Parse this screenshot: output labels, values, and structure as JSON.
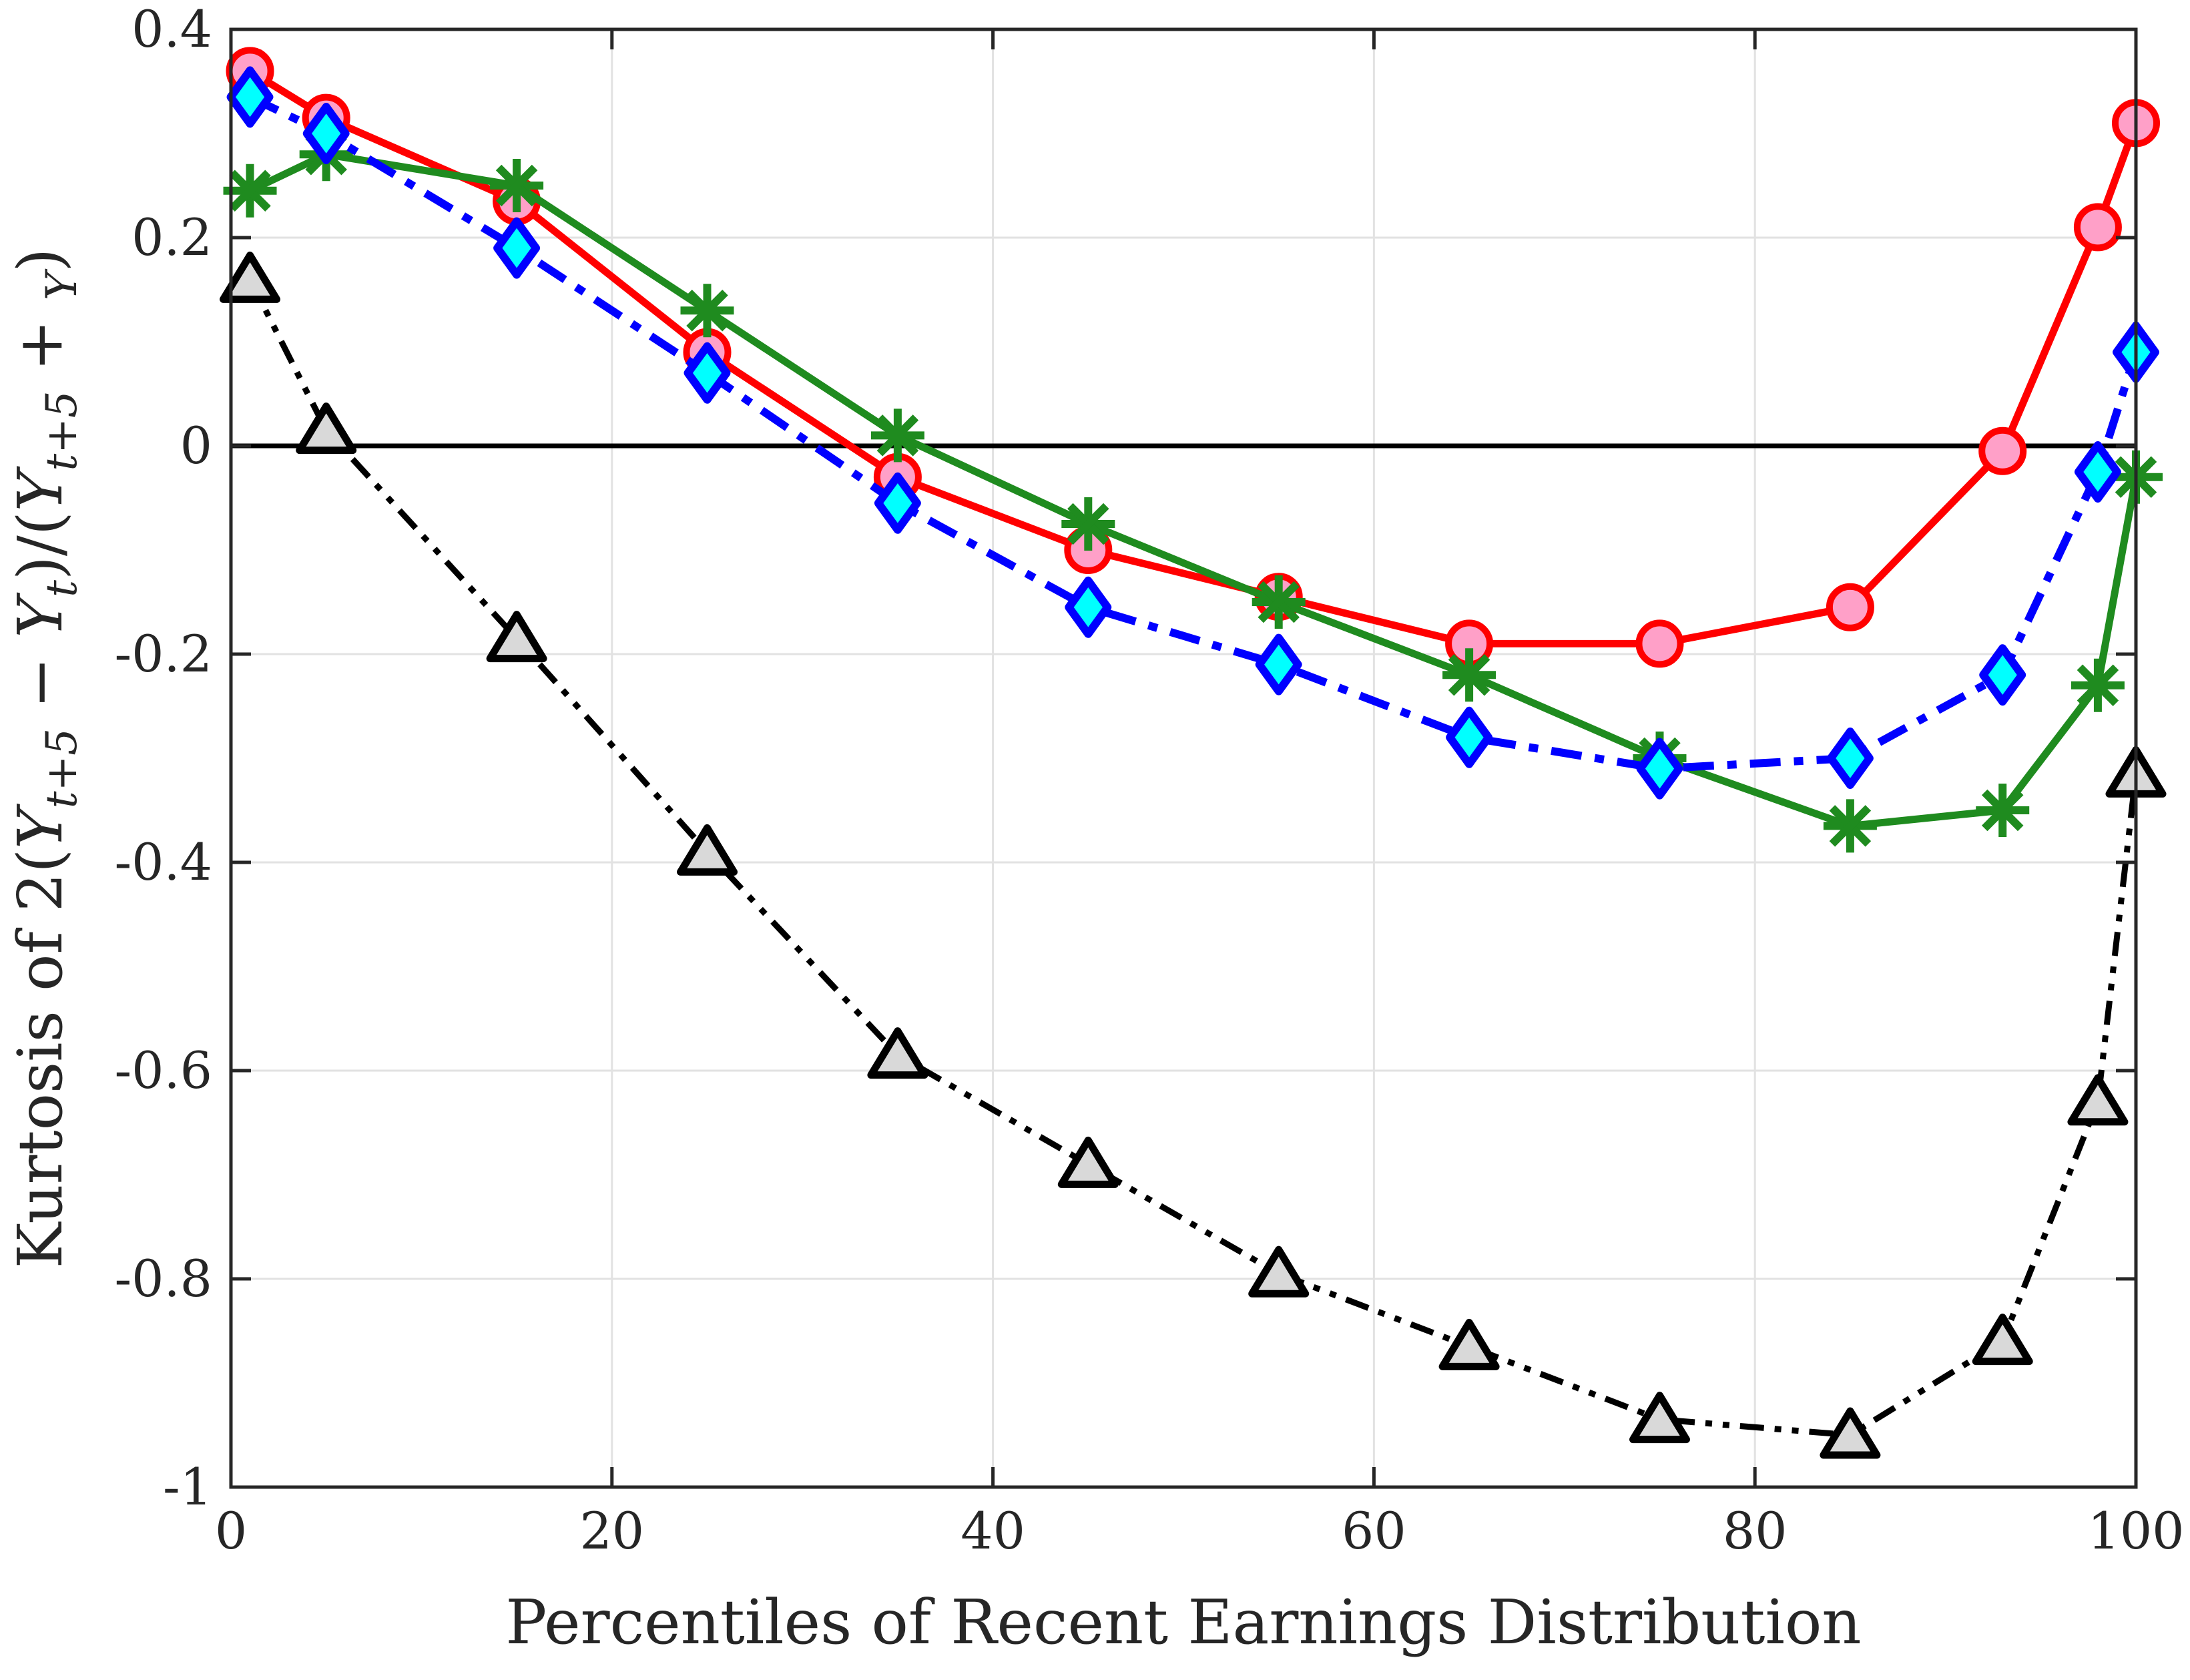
{
  "chart_data": {
    "type": "line",
    "title": "",
    "xlabel": "Percentiles of Recent Earnings Distribution",
    "ylabel": "Kurtosis of 2(Yt+5 − Yt)/(Yt+5 + Yt)",
    "ylabel_tokens": [
      {
        "text": "Kurtosis of 2(",
        "italic": false,
        "sub": false
      },
      {
        "text": "Y",
        "italic": true,
        "sub": false
      },
      {
        "text": "t+5",
        "italic": true,
        "sub": true
      },
      {
        "text": " − ",
        "italic": false,
        "sub": false
      },
      {
        "text": "Y",
        "italic": true,
        "sub": false
      },
      {
        "text": "t",
        "italic": true,
        "sub": true
      },
      {
        "text": ")/(",
        "italic": false,
        "sub": false
      },
      {
        "text": "Y",
        "italic": true,
        "sub": false
      },
      {
        "text": "t+5",
        "italic": true,
        "sub": true
      },
      {
        "text": " + ",
        "italic": false,
        "sub": false
      },
      {
        "text": "Y",
        "italic": true,
        "sub": true,
        "sub_is_plain": false
      },
      {
        "text": ")",
        "italic": false,
        "sub": false
      }
    ],
    "xlim": [
      0,
      100
    ],
    "ylim": [
      -1,
      0.4
    ],
    "xticks": [
      0,
      20,
      40,
      60,
      80,
      100
    ],
    "xtick_labels": [
      "0",
      "20",
      "40",
      "60",
      "80",
      "100"
    ],
    "yticks": [
      0.4,
      0.2,
      0,
      -0.2,
      -0.4,
      -0.6,
      -0.8,
      -1
    ],
    "ytick_labels": [
      "0.4",
      "0.2",
      "0",
      "-0.2",
      "-0.4",
      "-0.6",
      "-0.8",
      "-1"
    ],
    "grid": true,
    "zero_line": true,
    "legend": "none",
    "x": [
      1,
      5,
      15,
      25,
      35,
      45,
      55,
      65,
      75,
      85,
      93,
      98,
      100
    ],
    "series": [
      {
        "name": "series-1-circles",
        "marker": "circle",
        "line_style": "solid",
        "line_color": "#ff0000",
        "marker_fill": "#ffa0c8",
        "values": [
          0.36,
          0.315,
          0.235,
          0.09,
          -0.03,
          -0.1,
          -0.145,
          -0.19,
          -0.19,
          -0.155,
          -0.005,
          0.21,
          0.31
        ]
      },
      {
        "name": "series-3-asterisks",
        "marker": "asterisk",
        "line_style": "solid",
        "line_color": "#1f8b1f",
        "marker_fill": "#1f8b1f",
        "values": [
          0.245,
          0.28,
          0.25,
          0.13,
          0.01,
          -0.075,
          -0.15,
          -0.22,
          -0.3,
          -0.365,
          -0.35,
          -0.23,
          -0.03
        ]
      },
      {
        "name": "series-2-diamonds",
        "marker": "diamond",
        "line_style": "dash-dot",
        "line_color": "#0000ff",
        "marker_fill": "#00ffff",
        "values": [
          0.335,
          0.3,
          0.19,
          0.07,
          -0.055,
          -0.155,
          -0.21,
          -0.28,
          -0.31,
          -0.3,
          -0.22,
          -0.025,
          0.09
        ]
      },
      {
        "name": "series-4-triangles",
        "marker": "triangle",
        "line_style": "dash-dot-dot",
        "line_color": "#000000",
        "marker_fill": "#d9d9d9",
        "values": [
          0.16,
          0.015,
          -0.185,
          -0.39,
          -0.585,
          -0.69,
          -0.795,
          -0.865,
          -0.935,
          -0.95,
          -0.86,
          -0.63,
          -0.315
        ]
      }
    ],
    "colors": {
      "grid": "#e2e2e2",
      "axis_box": "#262626",
      "zero_line": "#000000",
      "background": "#ffffff",
      "tick_label": "#262626"
    }
  }
}
